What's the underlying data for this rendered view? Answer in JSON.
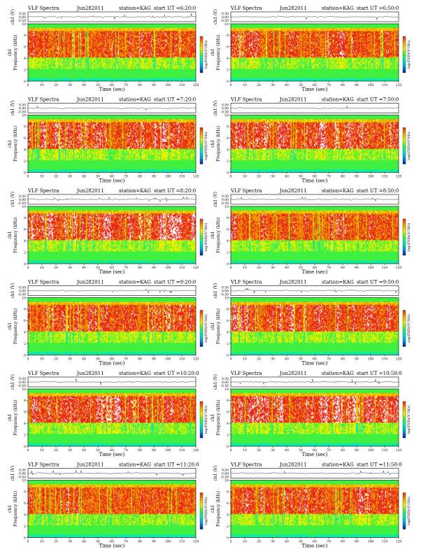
{
  "common": {
    "title": "VLF Spectra",
    "station": "station=KAG",
    "time_axis_label": "Time (sec)",
    "waveform_ylabel": "ch1 (V)",
    "spectrogram_ylabel": "Frequency (kHz)",
    "spectrogram_ch_label": "ch1",
    "colorbar_label": "log(PSD)(V²/Hz)"
  },
  "chart_data": [
    {
      "type": "heatmap",
      "date": "Jun282011",
      "start_ut": "start UT =6:20:0",
      "xlim": [
        0,
        120
      ],
      "xticks": [
        0,
        10,
        20,
        30,
        40,
        50,
        60,
        70,
        80,
        90,
        100,
        110,
        120
      ],
      "wave_yticks": [
        "0.50",
        "0.00",
        "-0.50"
      ],
      "freq_ylim": [
        0,
        10
      ],
      "freq_yticks": [
        "10",
        "8",
        "6",
        "4",
        "2",
        "0"
      ]
    },
    {
      "type": "heatmap",
      "date": "Jun282011",
      "start_ut": "start UT =6:50:0",
      "xlim": [
        0,
        120
      ],
      "xticks": [
        0,
        10,
        20,
        30,
        40,
        50,
        60,
        70,
        80,
        90,
        100,
        110,
        120
      ],
      "wave_yticks": [
        "0.50",
        "0.00",
        "-0.50"
      ],
      "freq_ylim": [
        0,
        10
      ],
      "freq_yticks": [
        "10",
        "8",
        "6",
        "4",
        "2",
        "0"
      ]
    },
    {
      "type": "heatmap",
      "date": "Jun282011",
      "start_ut": "start UT =7:20:0",
      "xlim": [
        0,
        120
      ],
      "xticks": [
        0,
        10,
        20,
        30,
        40,
        50,
        60,
        70,
        80,
        90,
        100,
        110,
        120
      ],
      "wave_yticks": [
        "0.50",
        "0.00",
        "-0.50"
      ],
      "freq_ylim": [
        0,
        10
      ],
      "freq_yticks": [
        "10",
        "8",
        "6",
        "4",
        "2",
        "0"
      ]
    },
    {
      "type": "heatmap",
      "date": "Jun282011",
      "start_ut": "start UT =7:50:0",
      "xlim": [
        0,
        120
      ],
      "xticks": [
        0,
        10,
        20,
        30,
        40,
        50,
        60,
        70,
        80,
        90,
        100,
        110,
        120
      ],
      "wave_yticks": [
        "0.50",
        "0.00",
        "-0.50"
      ],
      "freq_ylim": [
        0,
        10
      ],
      "freq_yticks": [
        "10",
        "8",
        "6",
        "4",
        "2",
        "0"
      ]
    },
    {
      "type": "heatmap",
      "date": "Jun282011",
      "start_ut": "start UT =8:20:0",
      "xlim": [
        0,
        120
      ],
      "xticks": [
        0,
        10,
        20,
        30,
        40,
        50,
        60,
        70,
        80,
        90,
        100,
        110,
        120
      ],
      "wave_yticks": [
        "0.50",
        "0.00",
        "-0.50"
      ],
      "freq_ylim": [
        0,
        10
      ],
      "freq_yticks": [
        "10",
        "8",
        "6",
        "4",
        "2",
        "0"
      ]
    },
    {
      "type": "heatmap",
      "date": "Jun282011",
      "start_ut": "start UT =8:50:0",
      "xlim": [
        0,
        120
      ],
      "xticks": [
        0,
        10,
        20,
        30,
        40,
        50,
        60,
        70,
        80,
        90,
        100,
        110,
        120
      ],
      "wave_yticks": [
        "0.50",
        "0.00",
        "-0.50"
      ],
      "freq_ylim": [
        0,
        10
      ],
      "freq_yticks": [
        "10",
        "8",
        "6",
        "4",
        "2",
        "0"
      ]
    },
    {
      "type": "heatmap",
      "date": "Jun282011",
      "start_ut": "start UT =9:20:0",
      "xlim": [
        0,
        120
      ],
      "xticks": [
        0,
        10,
        20,
        30,
        40,
        50,
        60,
        70,
        80,
        90,
        100,
        110,
        120
      ],
      "wave_yticks": [
        "0.50",
        "0.00",
        "-0.50"
      ],
      "freq_ylim": [
        0,
        10
      ],
      "freq_yticks": [
        "10",
        "8",
        "6",
        "4",
        "2",
        "0"
      ]
    },
    {
      "type": "heatmap",
      "date": "Jun282011",
      "start_ut": "start UT =9:50:0",
      "xlim": [
        0,
        120
      ],
      "xticks": [
        0,
        10,
        20,
        30,
        40,
        50,
        60,
        70,
        80,
        90,
        100,
        110,
        120
      ],
      "wave_yticks": [
        "0.50",
        "0.00",
        "-0.50"
      ],
      "freq_ylim": [
        0,
        10
      ],
      "freq_yticks": [
        "10",
        "8",
        "6",
        "4",
        "2",
        "0"
      ]
    },
    {
      "type": "heatmap",
      "date": "Jun282011",
      "start_ut": "start UT =10:20:0",
      "xlim": [
        0,
        120
      ],
      "xticks": [
        0,
        10,
        20,
        30,
        40,
        50,
        60,
        70,
        80,
        90,
        100,
        110,
        120
      ],
      "wave_yticks": [
        "0.50",
        "0.00",
        "-0.50"
      ],
      "freq_ylim": [
        0,
        10
      ],
      "freq_yticks": [
        "10",
        "8",
        "6",
        "4",
        "2",
        "0"
      ]
    },
    {
      "type": "heatmap",
      "date": "Jun282011",
      "start_ut": "start UT =10:50:0",
      "xlim": [
        0,
        120
      ],
      "xticks": [
        0,
        10,
        20,
        30,
        40,
        50,
        60,
        70,
        80,
        90,
        100,
        110,
        120
      ],
      "wave_yticks": [
        "0.50",
        "0.00",
        "-0.50"
      ],
      "freq_ylim": [
        0,
        10
      ],
      "freq_yticks": [
        "10",
        "8",
        "6",
        "4",
        "2",
        "0"
      ]
    },
    {
      "type": "heatmap",
      "date": "Jun282011",
      "start_ut": "start UT =11:20:0",
      "xlim": [
        0,
        120
      ],
      "xticks": [
        0,
        10,
        20,
        30,
        40,
        50,
        60,
        70,
        80,
        90,
        100,
        110,
        120
      ],
      "wave_yticks": [
        "0.50",
        "0.00",
        "-0.50"
      ],
      "freq_ylim": [
        0,
        10
      ],
      "freq_yticks": [
        "10",
        "8",
        "6",
        "4",
        "2",
        "0"
      ]
    },
    {
      "type": "heatmap",
      "date": "Jun282011",
      "start_ut": "start UT =11:50:0",
      "xlim": [
        0,
        120
      ],
      "xticks": [
        0,
        10,
        20,
        30,
        40,
        50,
        60,
        70,
        80,
        90,
        100,
        110,
        120
      ],
      "wave_yticks": [
        "0.50",
        "0.00",
        "-0.50"
      ],
      "freq_ylim": [
        0,
        10
      ],
      "freq_yticks": [
        "10",
        "8",
        "6",
        "4",
        "2",
        "0"
      ]
    }
  ],
  "colors": {
    "colormap": [
      "#0a1a9a",
      "#00a0e0",
      "#00e8c0",
      "#40f040",
      "#e8f000",
      "#f0a000",
      "#e82818",
      "#ffffff"
    ]
  }
}
